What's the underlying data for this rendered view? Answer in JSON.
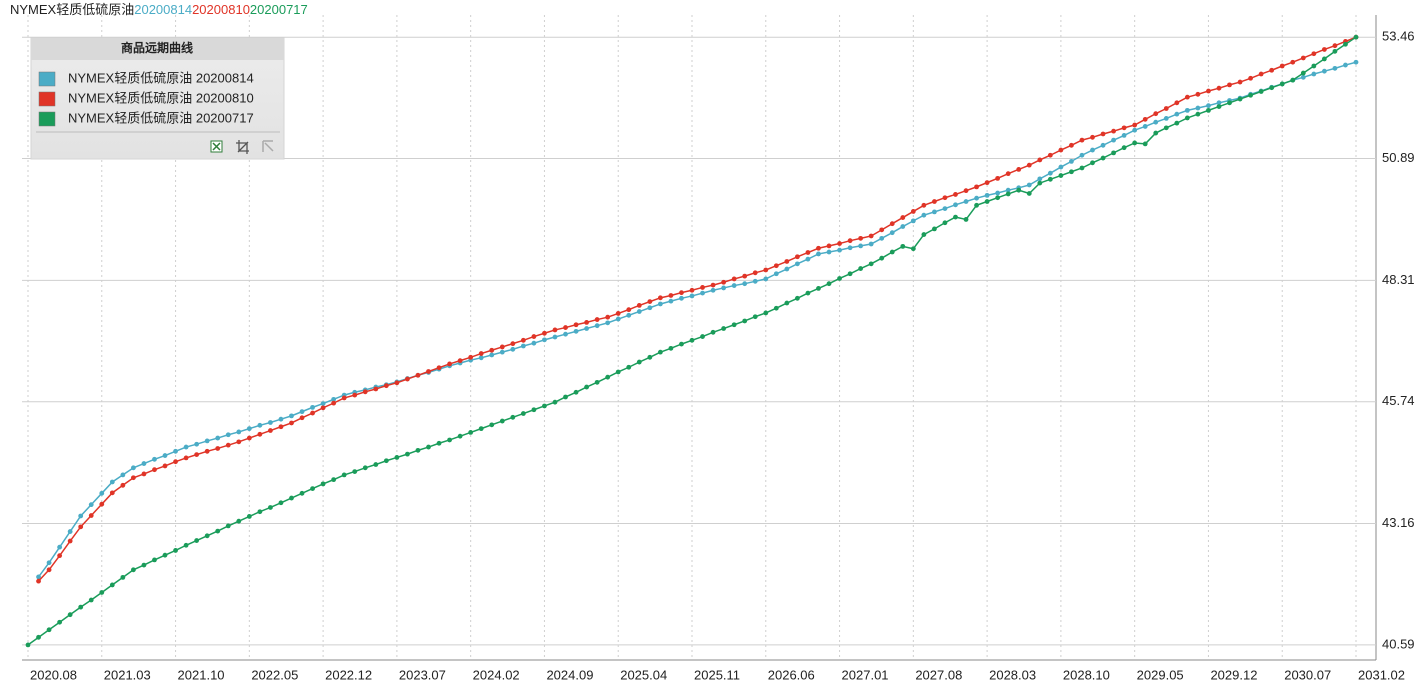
{
  "chart_data": {
    "type": "line",
    "title_parts": [
      {
        "text": "NYMEX轻质低硫原油",
        "color": "#222222"
      },
      {
        "text": "20200814",
        "color": "#4bacc6"
      },
      {
        "text": "20200810",
        "color": "#e03427"
      },
      {
        "text": "20200717",
        "color": "#1a9c5a"
      }
    ],
    "legend_title": "商品远期曲线",
    "legend_position": "upper left",
    "grid": true,
    "x": [
      "2020.08",
      "2020.09",
      "2020.10",
      "2020.11",
      "2020.12",
      "2021.01",
      "2021.02",
      "2021.03",
      "2021.04",
      "2021.05",
      "2021.06",
      "2021.07",
      "2021.08",
      "2021.09",
      "2021.10",
      "2021.11",
      "2021.12",
      "2022.01",
      "2022.02",
      "2022.03",
      "2022.04",
      "2022.05",
      "2022.06",
      "2022.07",
      "2022.08",
      "2022.09",
      "2022.10",
      "2022.11",
      "2022.12",
      "2023.01",
      "2023.02",
      "2023.03",
      "2023.04",
      "2023.05",
      "2023.06",
      "2023.07",
      "2023.08",
      "2023.09",
      "2023.10",
      "2023.11",
      "2023.12",
      "2024.01",
      "2024.02",
      "2024.03",
      "2024.04",
      "2024.05",
      "2024.06",
      "2024.07",
      "2024.08",
      "2024.09",
      "2024.10",
      "2024.11",
      "2024.12",
      "2025.01",
      "2025.02",
      "2025.03",
      "2025.04",
      "2025.05",
      "2025.06",
      "2025.07",
      "2025.08",
      "2025.09",
      "2025.10",
      "2025.11",
      "2025.12",
      "2026.01",
      "2026.02",
      "2026.03",
      "2026.04",
      "2026.05",
      "2026.06",
      "2026.07",
      "2026.08",
      "2026.09",
      "2026.10",
      "2026.11",
      "2026.12",
      "2027.01",
      "2027.02",
      "2027.03",
      "2027.04",
      "2027.05",
      "2027.06",
      "2027.07",
      "2027.08",
      "2027.09",
      "2027.10",
      "2027.11",
      "2027.12",
      "2028.01",
      "2028.02",
      "2028.03",
      "2028.04",
      "2028.05",
      "2028.06",
      "2028.07",
      "2028.08",
      "2028.09",
      "2028.10",
      "2028.11",
      "2028.12",
      "2029.01",
      "2029.02",
      "2029.03",
      "2029.04",
      "2029.05",
      "2029.06",
      "2029.07",
      "2029.08",
      "2029.09",
      "2029.10",
      "2029.11",
      "2029.12",
      "2030.01",
      "2030.02",
      "2030.03",
      "2030.04",
      "2030.05",
      "2030.06",
      "2030.07",
      "2030.08",
      "2030.09",
      "2030.10",
      "2030.11",
      "2030.12",
      "2031.01",
      "2031.02"
    ],
    "xticks": [
      "2020.08",
      "2021.03",
      "2021.10",
      "2022.05",
      "2022.12",
      "2023.07",
      "2024.02",
      "2024.09",
      "2025.04",
      "2025.11",
      "2026.06",
      "2027.01",
      "2027.08",
      "2028.03",
      "2028.10",
      "2029.05",
      "2029.12",
      "2030.07",
      "2031.02"
    ],
    "ylim": [
      40.27,
      53.93
    ],
    "yticks": [
      40.59,
      43.16,
      45.74,
      48.31,
      50.89,
      53.46
    ],
    "series": [
      {
        "name": "NYMEX轻质低硫原油 20200814",
        "color": "#4bacc6",
        "values": [
          null,
          42.03,
          42.33,
          42.66,
          42.99,
          43.32,
          43.56,
          43.8,
          44.04,
          44.19,
          44.34,
          44.43,
          44.52,
          44.6,
          44.69,
          44.78,
          44.84,
          44.91,
          44.97,
          45.04,
          45.1,
          45.17,
          45.24,
          45.3,
          45.37,
          45.44,
          45.53,
          45.62,
          45.7,
          45.79,
          45.88,
          45.94,
          45.99,
          46.05,
          46.1,
          46.16,
          46.23,
          46.3,
          46.36,
          46.43,
          46.5,
          46.56,
          46.62,
          46.67,
          46.73,
          46.79,
          46.85,
          46.92,
          46.98,
          47.05,
          47.11,
          47.17,
          47.23,
          47.29,
          47.35,
          47.41,
          47.49,
          47.57,
          47.65,
          47.73,
          47.81,
          47.87,
          47.93,
          47.98,
          48.04,
          48.1,
          48.15,
          48.2,
          48.24,
          48.29,
          48.34,
          48.45,
          48.55,
          48.66,
          48.76,
          48.87,
          48.91,
          48.95,
          49.0,
          49.04,
          49.08,
          49.2,
          49.32,
          49.45,
          49.57,
          49.69,
          49.76,
          49.83,
          49.91,
          49.98,
          50.05,
          50.11,
          50.16,
          50.22,
          50.27,
          50.33,
          50.46,
          50.58,
          50.71,
          50.83,
          50.96,
          51.07,
          51.17,
          51.28,
          51.38,
          51.49,
          51.57,
          51.66,
          51.74,
          51.83,
          51.91,
          51.96,
          52.01,
          52.07,
          52.12,
          52.17,
          52.25,
          52.32,
          52.4,
          52.47,
          52.55,
          52.61,
          52.68,
          52.74,
          52.8,
          52.87,
          52.93
        ]
      },
      {
        "name": "NYMEX轻质低硫原油 20200810",
        "color": "#e03427",
        "values": [
          null,
          41.94,
          42.18,
          42.48,
          42.79,
          43.09,
          43.33,
          43.57,
          43.81,
          43.97,
          44.13,
          44.21,
          44.3,
          44.38,
          44.47,
          44.55,
          44.62,
          44.69,
          44.75,
          44.82,
          44.89,
          44.97,
          45.05,
          45.13,
          45.21,
          45.29,
          45.4,
          45.5,
          45.61,
          45.71,
          45.82,
          45.88,
          45.95,
          46.01,
          46.08,
          46.14,
          46.22,
          46.3,
          46.38,
          46.46,
          46.54,
          46.61,
          46.68,
          46.76,
          46.83,
          46.9,
          46.97,
          47.04,
          47.12,
          47.19,
          47.26,
          47.31,
          47.37,
          47.42,
          47.48,
          47.53,
          47.61,
          47.69,
          47.78,
          47.86,
          47.94,
          47.99,
          48.05,
          48.1,
          48.16,
          48.21,
          48.27,
          48.34,
          48.4,
          48.47,
          48.53,
          48.62,
          48.71,
          48.81,
          48.9,
          48.99,
          49.04,
          49.09,
          49.15,
          49.2,
          49.25,
          49.38,
          49.51,
          49.64,
          49.77,
          49.9,
          49.98,
          50.06,
          50.13,
          50.21,
          50.29,
          50.38,
          50.47,
          50.57,
          50.66,
          50.75,
          50.86,
          50.96,
          51.07,
          51.17,
          51.28,
          51.34,
          51.41,
          51.47,
          51.54,
          51.6,
          51.72,
          51.84,
          51.95,
          52.07,
          52.19,
          52.25,
          52.32,
          52.38,
          52.45,
          52.51,
          52.59,
          52.68,
          52.76,
          52.85,
          52.93,
          53.02,
          53.11,
          53.2,
          53.28,
          53.37,
          53.46
        ]
      },
      {
        "name": "NYMEX轻质低硫原油 20200717",
        "color": "#1a9c5a",
        "values": [
          40.59,
          40.75,
          40.91,
          41.07,
          41.23,
          41.39,
          41.54,
          41.7,
          41.86,
          42.02,
          42.18,
          42.28,
          42.39,
          42.49,
          42.59,
          42.7,
          42.8,
          42.9,
          43.0,
          43.11,
          43.21,
          43.31,
          43.41,
          43.5,
          43.6,
          43.7,
          43.8,
          43.9,
          44.0,
          44.09,
          44.19,
          44.26,
          44.34,
          44.41,
          44.49,
          44.56,
          44.63,
          44.71,
          44.78,
          44.86,
          44.93,
          45.01,
          45.09,
          45.17,
          45.25,
          45.33,
          45.41,
          45.49,
          45.57,
          45.65,
          45.73,
          45.84,
          45.94,
          46.05,
          46.15,
          46.26,
          46.37,
          46.47,
          46.58,
          46.68,
          46.79,
          46.87,
          46.96,
          47.04,
          47.12,
          47.21,
          47.29,
          47.37,
          47.45,
          47.54,
          47.62,
          47.72,
          47.83,
          47.93,
          48.04,
          48.14,
          48.24,
          48.35,
          48.45,
          48.56,
          48.66,
          48.78,
          48.91,
          49.03,
          48.98,
          49.28,
          49.4,
          49.53,
          49.65,
          49.6,
          49.9,
          49.98,
          50.06,
          50.14,
          50.22,
          50.15,
          50.37,
          50.45,
          50.53,
          50.61,
          50.69,
          50.8,
          50.9,
          51.01,
          51.12,
          51.22,
          51.2,
          51.43,
          51.54,
          51.64,
          51.75,
          51.83,
          51.91,
          51.99,
          52.07,
          52.15,
          52.23,
          52.31,
          52.39,
          52.47,
          52.55,
          52.7,
          52.85,
          53.0,
          53.16,
          53.31,
          53.46
        ]
      }
    ]
  }
}
